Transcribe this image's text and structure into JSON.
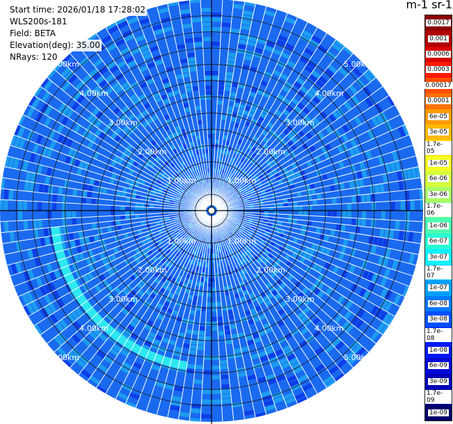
{
  "info": {
    "start_time": "Start time: 2026/01/18 17:28:02",
    "site": "WLS200s-181",
    "field": "Field: BETA",
    "elevation": "Elevation(deg): 35.00",
    "nrays": "NRays: 120"
  },
  "colorbar": {
    "title": "m-1 sr-1",
    "ticks": [
      "0.0017",
      "0.001",
      "0.0006",
      "0.0003",
      "0.00017",
      "0.0001",
      "6e-05",
      "3e-05",
      "1.7e-05",
      "1e-05",
      "6e-06",
      "3e-06",
      "1.7e-06",
      "1e-06",
      "6e-07",
      "3e-07",
      "1.7e-07",
      "1e-07",
      "6e-08",
      "3e-08",
      "1.7e-08",
      "1e-08",
      "6e-09",
      "3e-09",
      "1.7e-09",
      "1e-09"
    ],
    "colors": [
      "#8b0000",
      "#b00000",
      "#d80000",
      "#ff1a00",
      "#ff4d00",
      "#ff7000",
      "#ff9a00",
      "#ffb800",
      "#ffd700",
      "#f5ff20",
      "#d4ff3c",
      "#aaff66",
      "#7dff8a",
      "#4dffb0",
      "#28ffd0",
      "#10f0ff",
      "#00c8ff",
      "#00a0ff",
      "#0078ff",
      "#0050ff",
      "#0030ff",
      "#0018f0",
      "#0008d8",
      "#0000b8",
      "#000090",
      "#000068"
    ]
  },
  "range_labels": [
    "1.00km",
    "2.00km",
    "3.00km",
    "4.00km",
    "5.00km"
  ],
  "palette": {
    "base": "#1a6af0",
    "pale": "#1c9cf0",
    "deep": "#0c3ee8",
    "cyan": "#2ee8f0"
  }
}
